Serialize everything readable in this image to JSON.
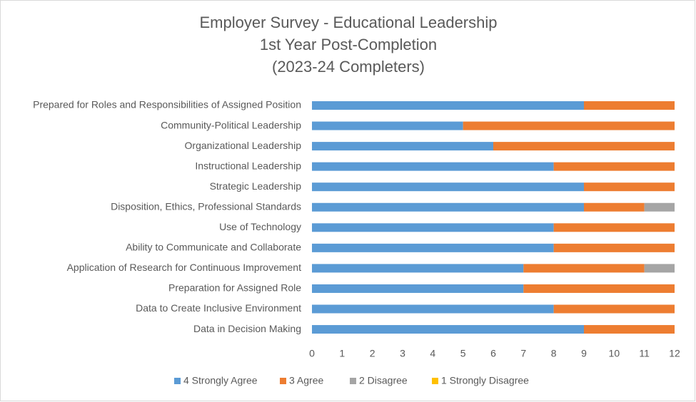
{
  "chart_data": {
    "type": "stacked-bar",
    "orientation": "horizontal",
    "title": [
      "Employer Survey - Educational Leadership",
      "1st Year Post-Completion",
      "(2023-24 Completers)"
    ],
    "categories": [
      "Prepared for Roles and Responsibilities of Assigned Position",
      "Community-Political Leadership",
      "Organizational Leadership",
      "Instructional Leadership",
      "Strategic Leadership",
      "Disposition, Ethics, Professional Standards",
      "Use of Technology",
      "Ability to Communicate and Collaborate",
      "Application of Research for Continuous Improvement",
      "Preparation for Assigned Role",
      "Data to Create Inclusive Environment",
      "Data in Decision Making"
    ],
    "series": [
      {
        "name": "4 Strongly Agree",
        "color": "#5b9bd5",
        "values": [
          9,
          5,
          6,
          8,
          9,
          9,
          8,
          8,
          7,
          7,
          8,
          9
        ]
      },
      {
        "name": "3 Agree",
        "color": "#ed7d31",
        "values": [
          3,
          7,
          6,
          4,
          3,
          2,
          4,
          4,
          4,
          5,
          4,
          3
        ]
      },
      {
        "name": "2 Disagree",
        "color": "#a5a5a5",
        "values": [
          0,
          0,
          0,
          0,
          0,
          1,
          0,
          0,
          1,
          0,
          0,
          0
        ]
      },
      {
        "name": "1 Strongly Disagree",
        "color": "#ffc000",
        "values": [
          0,
          0,
          0,
          0,
          0,
          0,
          0,
          0,
          0,
          0,
          0,
          0
        ]
      }
    ],
    "xlim": [
      0,
      12
    ],
    "xticks": [
      0,
      1,
      2,
      3,
      4,
      5,
      6,
      7,
      8,
      9,
      10,
      11,
      12
    ],
    "grid": false,
    "legend": "bottom"
  }
}
